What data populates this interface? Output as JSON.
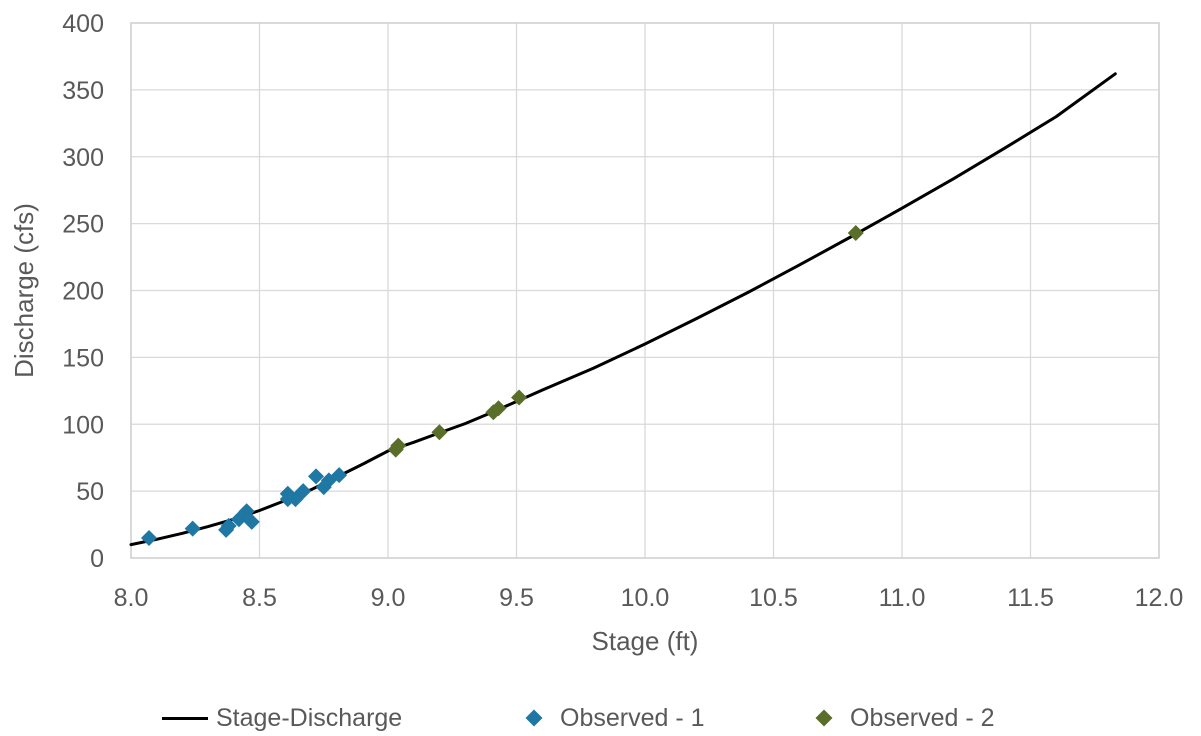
{
  "chart_data": {
    "type": "scatter",
    "title": "",
    "xlabel": "Stage (ft)",
    "ylabel": "Discharge (cfs)",
    "xlim": [
      8.0,
      12.0
    ],
    "ylim": [
      0,
      400
    ],
    "x_ticks": [
      "8.0",
      "8.5",
      "9.0",
      "9.5",
      "10.0",
      "10.5",
      "11.0",
      "11.5",
      "12.0"
    ],
    "y_ticks": [
      "0",
      "50",
      "100",
      "150",
      "200",
      "250",
      "300",
      "350",
      "400"
    ],
    "grid": true,
    "legend_position": "bottom",
    "series": [
      {
        "name": "Stage-Discharge",
        "kind": "line",
        "color": "#000000",
        "points": [
          [
            8.0,
            10
          ],
          [
            8.1,
            14
          ],
          [
            8.2,
            18.5
          ],
          [
            8.3,
            23.5
          ],
          [
            8.4,
            29
          ],
          [
            8.5,
            35.5
          ],
          [
            8.6,
            43
          ],
          [
            8.7,
            51
          ],
          [
            8.8,
            60.5
          ],
          [
            8.9,
            70
          ],
          [
            9.0,
            80
          ],
          [
            9.1,
            86.5
          ],
          [
            9.2,
            93.5
          ],
          [
            9.3,
            100.5
          ],
          [
            9.4,
            108.5
          ],
          [
            9.5,
            117
          ],
          [
            9.6,
            125.5
          ],
          [
            9.8,
            142
          ],
          [
            10.0,
            160
          ],
          [
            10.2,
            179
          ],
          [
            10.4,
            198.5
          ],
          [
            10.6,
            219
          ],
          [
            10.8,
            240
          ],
          [
            11.0,
            261.5
          ],
          [
            11.2,
            283.5
          ],
          [
            11.4,
            306.5
          ],
          [
            11.6,
            330
          ],
          [
            11.83,
            362
          ]
        ]
      },
      {
        "name": "Observed - 1",
        "kind": "marker",
        "color": "#1F77A4",
        "points": [
          [
            8.07,
            15
          ],
          [
            8.24,
            22
          ],
          [
            8.37,
            21
          ],
          [
            8.38,
            24
          ],
          [
            8.42,
            29
          ],
          [
            8.45,
            35
          ],
          [
            8.47,
            27
          ],
          [
            8.61,
            48
          ],
          [
            8.61,
            44
          ],
          [
            8.64,
            44
          ],
          [
            8.67,
            50
          ],
          [
            8.72,
            61
          ],
          [
            8.75,
            53
          ],
          [
            8.77,
            58
          ],
          [
            8.81,
            62
          ]
        ]
      },
      {
        "name": "Observed - 2",
        "kind": "marker",
        "color": "#5A6E2A",
        "points": [
          [
            9.03,
            81
          ],
          [
            9.04,
            84
          ],
          [
            9.2,
            94
          ],
          [
            9.41,
            109
          ],
          [
            9.43,
            112
          ],
          [
            9.51,
            120
          ],
          [
            10.82,
            243
          ]
        ]
      }
    ]
  }
}
